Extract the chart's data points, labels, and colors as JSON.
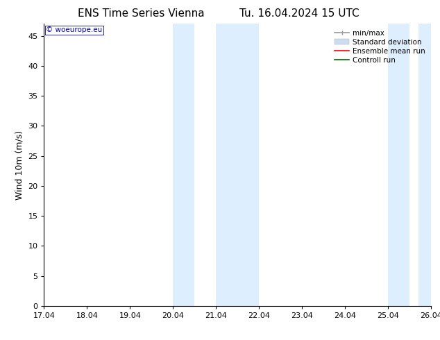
{
  "title_left": "ENS Time Series Vienna",
  "title_right": "Tu. 16.04.2024 15 UTC",
  "ylabel": "Wind 10m (m/s)",
  "ylim": [
    0,
    47
  ],
  "yticks": [
    0,
    5,
    10,
    15,
    20,
    25,
    30,
    35,
    40,
    45
  ],
  "xlim_start": 0,
  "xlim_end": 9,
  "xtick_labels": [
    "17.04",
    "18.04",
    "19.04",
    "20.04",
    "21.04",
    "22.04",
    "23.04",
    "24.04",
    "25.04",
    "26.04"
  ],
  "xtick_positions": [
    0,
    1,
    2,
    3,
    4,
    5,
    6,
    7,
    8,
    9
  ],
  "shaded_regions": [
    {
      "xstart": 3.0,
      "xend": 3.5
    },
    {
      "xstart": 4.0,
      "xend": 5.0
    },
    {
      "xstart": 8.0,
      "xend": 8.5
    },
    {
      "xstart": 8.7,
      "xend": 9.5
    }
  ],
  "shaded_color": "#ddeeff",
  "background_color": "#ffffff",
  "watermark_text": "© woeurope.eu",
  "watermark_color": "#0000cc",
  "legend_items": [
    {
      "label": "min/max",
      "color": "#999999",
      "lw": 1.2
    },
    {
      "label": "Standard deviation",
      "color": "#ccddf0",
      "lw": 8
    },
    {
      "label": "Ensemble mean run",
      "color": "#ff0000",
      "lw": 1.2
    },
    {
      "label": "Controll run",
      "color": "#006600",
      "lw": 1.2
    }
  ],
  "font_family": "DejaVu Sans",
  "title_fontsize": 11,
  "tick_fontsize": 8,
  "legend_fontsize": 7.5,
  "ylabel_fontsize": 9
}
